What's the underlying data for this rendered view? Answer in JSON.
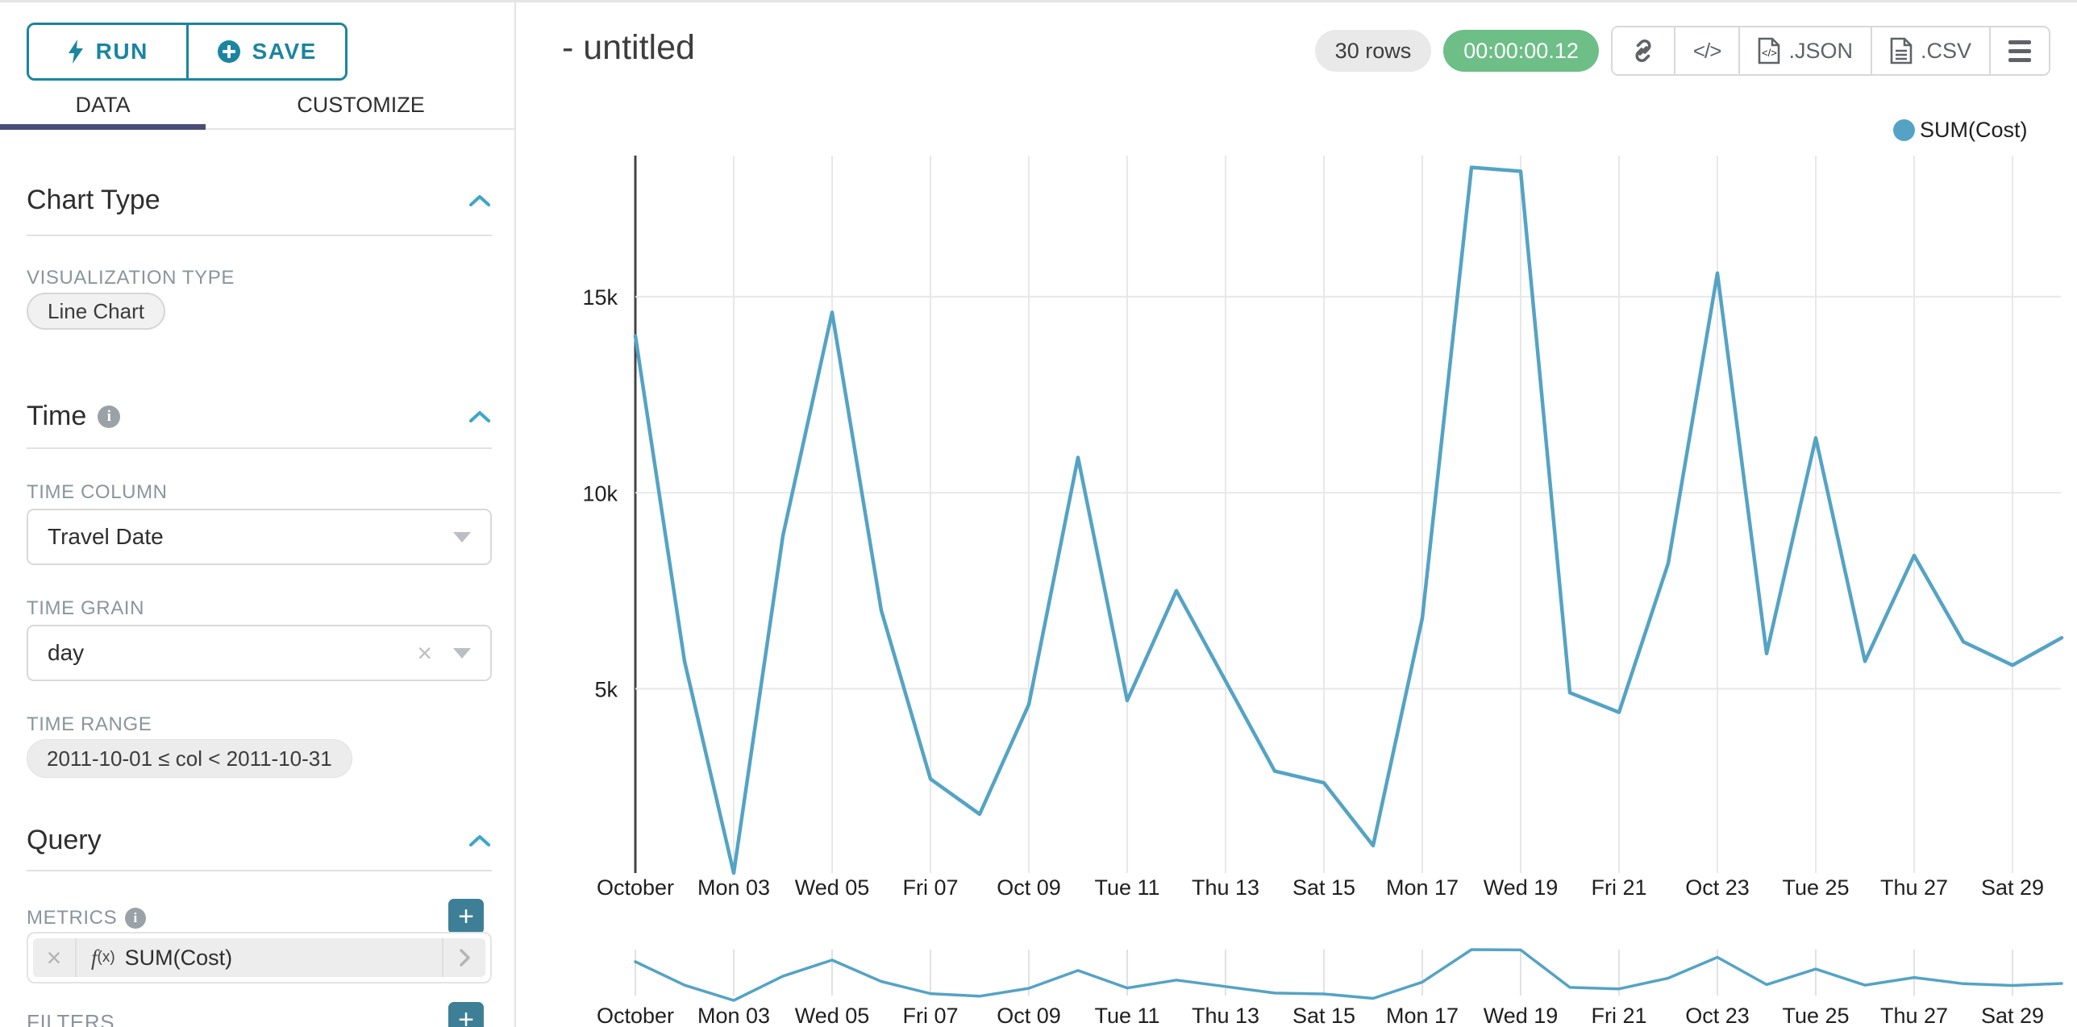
{
  "colors": {
    "accent_teal": "#1a85a0",
    "line_blue": "#54a3c5",
    "timer_green": "#6dbe87",
    "tab_underline": "#484e76",
    "add_button_teal": "#3d7f97"
  },
  "sidebar": {
    "run_label": "RUN",
    "save_label": "SAVE",
    "tabs": [
      {
        "label": "DATA",
        "active": true
      },
      {
        "label": "CUSTOMIZE",
        "active": false
      }
    ],
    "chart_type_section": {
      "title": "Chart Type",
      "viz_type_label": "VISUALIZATION TYPE",
      "viz_type_value": "Line Chart"
    },
    "time_section": {
      "title": "Time",
      "time_column_label": "TIME COLUMN",
      "time_column_value": "Travel Date",
      "time_grain_label": "TIME GRAIN",
      "time_grain_value": "day",
      "time_range_label": "TIME RANGE",
      "time_range_value": "2011-10-01 ≤ col < 2011-10-31"
    },
    "query_section": {
      "title": "Query",
      "metrics_label": "METRICS",
      "metric_fx_prefix": "(x)",
      "metric_value": "SUM(Cost)",
      "filters_label": "FILTERS"
    }
  },
  "header": {
    "title": "- untitled",
    "rows_badge": "30 rows",
    "timer": "00:00:00.12",
    "buttons": {
      "code_label": "</>",
      "json_label": ".JSON",
      "csv_label": ".CSV"
    }
  },
  "legend": {
    "label": "SUM(Cost)"
  },
  "chart_data": {
    "type": "line",
    "title": "",
    "xlabel": "",
    "ylabel": "",
    "legend_position": "top-right",
    "grid": true,
    "x_tick_labels": [
      "October",
      "Mon 03",
      "Wed 05",
      "Fri 07",
      "Oct 09",
      "Tue 11",
      "Thu 13",
      "Sat 15",
      "Mon 17",
      "Wed 19",
      "Fri 21",
      "Oct 23",
      "Tue 25",
      "Thu 27",
      "Sat 29"
    ],
    "x_tick_every": 2,
    "n_points": 30,
    "y_ticks": [
      {
        "value": 5000,
        "label": "5k"
      },
      {
        "value": 10000,
        "label": "10k"
      },
      {
        "value": 15000,
        "label": "15k"
      }
    ],
    "y_domain": [
      300,
      18600
    ],
    "series": [
      {
        "name": "SUM(Cost)",
        "color": "#54a3c5",
        "values": [
          14000,
          5700,
          300,
          8900,
          14600,
          7000,
          2700,
          1800,
          4600,
          10900,
          4700,
          7500,
          5200,
          2900,
          2600,
          1000,
          6800,
          18300,
          18200,
          4900,
          4400,
          8200,
          15600,
          5900,
          11400,
          5700,
          8400,
          6200,
          5600,
          6300
        ]
      }
    ],
    "has_mini_chart": true
  }
}
